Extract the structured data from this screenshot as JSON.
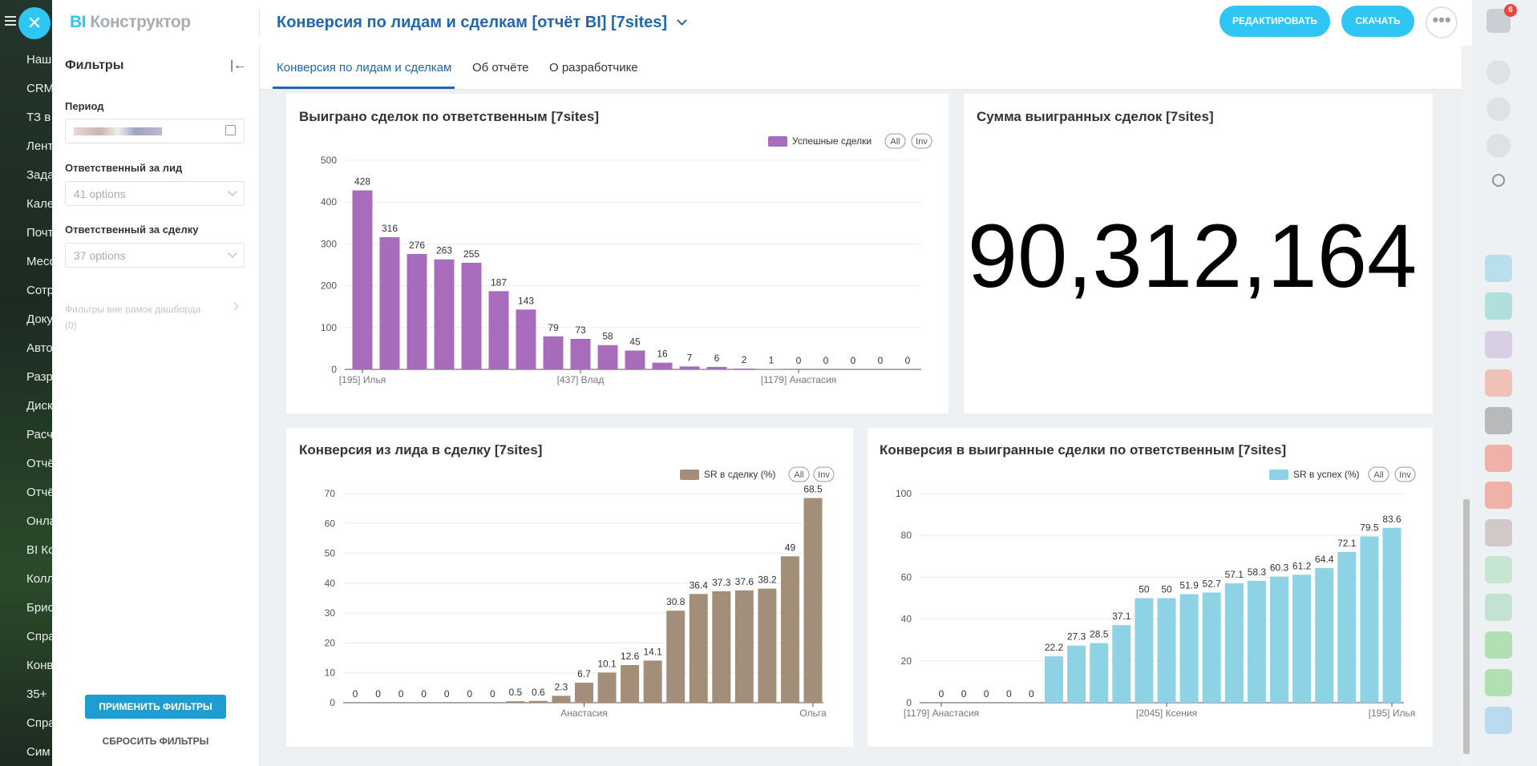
{
  "left_menu": [
    "Наш",
    "CRM",
    "ТЗ в",
    "Лент",
    "Зада",
    "Кале",
    "Почт",
    "Месс",
    "Сотр",
    "Доку",
    "Авто",
    "Разр",
    "Диск",
    "Расч",
    "Отчё",
    "Отчё",
    "Онла",
    "BI Ко",
    "Колл",
    "Брис",
    "Спра",
    "Конв",
    "35+",
    "Спра",
    "Сим"
  ],
  "header": {
    "logo_bi": "BI",
    "logo": "Конструктор",
    "title": "Конверсия по лидам и сделкам [отчёт BI] [7sites]",
    "edit": "РЕДАКТИРОВАТЬ",
    "download": "СКАЧАТЬ"
  },
  "tabs": [
    "Конверсия по лидам и сделкам",
    "Об отчёте",
    "О разработчике"
  ],
  "filters": {
    "title": "Фильтры",
    "period_label": "Период",
    "lead_owner_label": "Ответственный за лид",
    "lead_owner_value": "41 options",
    "deal_owner_label": "Ответственный за сделку",
    "deal_owner_value": "37 options",
    "outside_label": "Фильтры вне рамок дашборда",
    "outside_count": "(0)",
    "apply": "ПРИМЕНИТЬ ФИЛЬТРЫ",
    "reset": "СБРОСИТЬ ФИЛЬТРЫ"
  },
  "notifications_badge": 6,
  "chart_data": [
    {
      "type": "bar",
      "title": "Выиграно сделок по ответственным [7sites]",
      "categories": [
        "[195] Илья",
        null,
        null,
        null,
        null,
        null,
        null,
        null,
        "[437] Влад",
        null,
        null,
        null,
        null,
        null,
        null,
        null,
        "[1179] Анастасия",
        null,
        null,
        null,
        null
      ],
      "series": [
        {
          "name": "Успешные сделки",
          "color": "#a86cbd",
          "values": [
            428,
            316,
            276,
            263,
            255,
            187,
            143,
            79,
            73,
            58,
            45,
            16,
            7,
            6,
            2,
            1,
            0,
            0,
            0,
            0,
            0
          ]
        }
      ],
      "ylim": [
        0,
        500
      ],
      "yticks": [
        0,
        100,
        200,
        300,
        400,
        500
      ],
      "grid": true,
      "legend": "top-right",
      "legend_buttons": [
        "All",
        "Inv"
      ]
    },
    {
      "type": "kpi",
      "title": "Сумма выигранных сделок [7sites]",
      "values": [
        90312164
      ],
      "value_labels": [
        "90,312,164"
      ]
    },
    {
      "type": "bar",
      "title": "Конверсия из лида в сделку [7sites]",
      "categories": [
        null,
        null,
        null,
        null,
        null,
        null,
        null,
        null,
        null,
        null,
        "Анастасия",
        null,
        null,
        null,
        null,
        null,
        null,
        null,
        null,
        null,
        "Ольга"
      ],
      "series": [
        {
          "name": "SR в сделку (%)",
          "color": "#a38f79",
          "values": [
            0,
            0,
            0,
            0,
            0,
            0,
            0,
            0.5,
            0.6,
            2.3,
            6.7,
            10.1,
            12.6,
            14.1,
            30.8,
            36.4,
            37.3,
            37.6,
            38.2,
            49,
            68.5
          ]
        }
      ],
      "ylim": [
        0,
        70
      ],
      "yticks": [
        0,
        10,
        20,
        30,
        40,
        50,
        60,
        70
      ],
      "grid": true,
      "legend": "top-right",
      "legend_buttons": [
        "All",
        "Inv"
      ]
    },
    {
      "type": "bar",
      "title": "Конверсия в выигранные сделки по ответственным [7sites]",
      "categories": [
        "[1179] Анастасия",
        null,
        null,
        null,
        null,
        null,
        null,
        null,
        null,
        null,
        "[2045] Ксения",
        null,
        null,
        null,
        null,
        null,
        null,
        null,
        null,
        null,
        "[195] Илья"
      ],
      "series": [
        {
          "name": "SR в успех (%)",
          "color": "#8dd3e5",
          "values": [
            0,
            0,
            0,
            0,
            0,
            22.2,
            27.3,
            28.5,
            37.1,
            50,
            50,
            51.9,
            52.7,
            57.1,
            58.3,
            60.3,
            61.2,
            64.4,
            72.1,
            79.5,
            83.6
          ]
        }
      ],
      "ylim": [
        0,
        100
      ],
      "yticks": [
        0,
        20,
        40,
        60,
        80,
        100
      ],
      "grid": true,
      "legend": "top-right",
      "legend_buttons": [
        "All",
        "Inv"
      ]
    }
  ]
}
